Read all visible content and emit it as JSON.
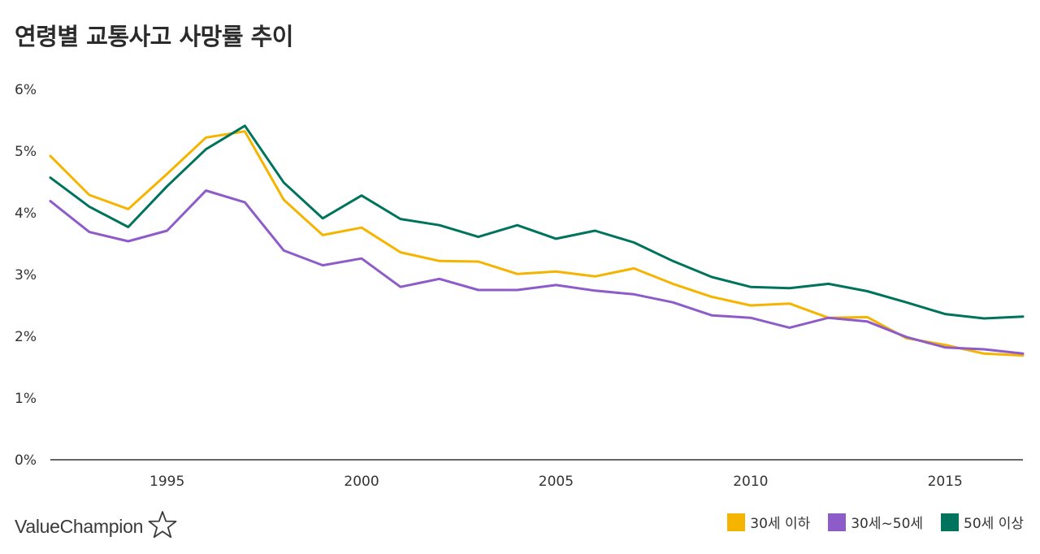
{
  "title": "연령별 교통사고 사망률 추이",
  "brand": {
    "name": "ValueChampion",
    "icon": "star-icon"
  },
  "colors": {
    "under30": "#f5b400",
    "30to50": "#8e5cc9",
    "over50": "#00735c",
    "axis": "#333333"
  },
  "chart_data": {
    "type": "line",
    "title": "연령별 교통사고 사망률 추이",
    "xlabel": "",
    "ylabel": "",
    "x": [
      1992,
      1993,
      1994,
      1995,
      1996,
      1997,
      1998,
      1999,
      2000,
      2001,
      2002,
      2003,
      2004,
      2005,
      2006,
      2007,
      2008,
      2009,
      2010,
      2011,
      2012,
      2013,
      2014,
      2015,
      2016,
      2017
    ],
    "xlim": [
      1992,
      2017
    ],
    "x_ticks": [
      "1995",
      "2000",
      "2005",
      "2010",
      "2015"
    ],
    "ylim": [
      0,
      6
    ],
    "y_ticks": [
      "0%",
      "1%",
      "2%",
      "3%",
      "4%",
      "5%",
      "6%"
    ],
    "grid": false,
    "legend_position": "bottom-right",
    "series": [
      {
        "name": "30세 이하",
        "color": "#f5b400",
        "values": [
          4.92,
          4.29,
          4.06,
          4.63,
          5.22,
          5.32,
          4.21,
          3.64,
          3.76,
          3.36,
          3.22,
          3.21,
          3.01,
          3.05,
          2.97,
          3.1,
          2.85,
          2.64,
          2.5,
          2.53,
          2.3,
          2.31,
          1.97,
          1.86,
          1.72,
          1.69
        ]
      },
      {
        "name": "30세~50세",
        "color": "#8e5cc9",
        "values": [
          4.19,
          3.69,
          3.54,
          3.71,
          4.36,
          4.17,
          3.39,
          3.15,
          3.26,
          2.8,
          2.93,
          2.75,
          2.75,
          2.83,
          2.74,
          2.68,
          2.55,
          2.34,
          2.3,
          2.14,
          2.3,
          2.24,
          1.99,
          1.82,
          1.79,
          1.72
        ]
      },
      {
        "name": "50세 이상",
        "color": "#00735c",
        "values": [
          4.57,
          4.1,
          3.77,
          4.43,
          5.03,
          5.41,
          4.49,
          3.91,
          4.28,
          3.9,
          3.8,
          3.61,
          3.8,
          3.58,
          3.71,
          3.52,
          3.22,
          2.96,
          2.8,
          2.78,
          2.85,
          2.73,
          2.55,
          2.36,
          2.29,
          2.32
        ]
      }
    ]
  }
}
